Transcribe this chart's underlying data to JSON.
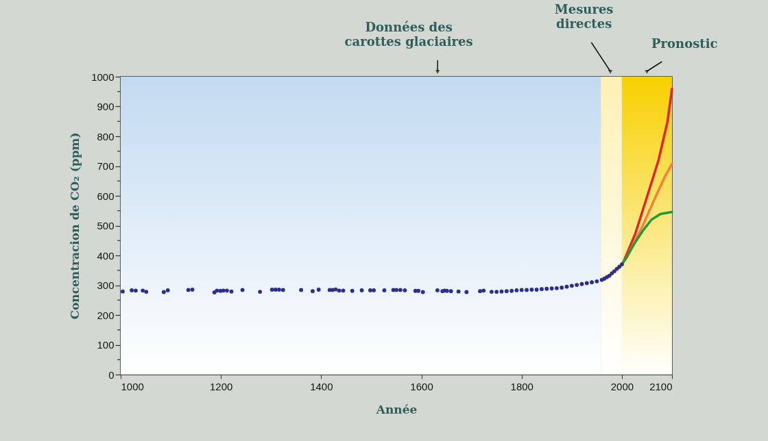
{
  "chart_data": {
    "type": "scatter",
    "xlabel": "Année",
    "ylabel": "Concentracion de CO₂ (ppm)",
    "xlim": [
      1000,
      2100
    ],
    "xticks": [
      1000,
      1200,
      1400,
      1600,
      1800,
      2000,
      2100
    ],
    "ylim": [
      0,
      1000
    ],
    "yticks": [
      0,
      {
        "value": 50,
        "label": null
      },
      100,
      {
        "value": 150,
        "label": null
      },
      200,
      {
        "value": 250,
        "label": null
      },
      300,
      {
        "value": 350,
        "label": null
      },
      400,
      {
        "value": 450,
        "label": null
      },
      500,
      {
        "value": 550,
        "label": null
      },
      600,
      {
        "value": 650,
        "label": null
      },
      700,
      {
        "value": 750,
        "label": null
      },
      800,
      {
        "value": 850,
        "label": null
      },
      900,
      {
        "value": 950,
        "label": null
      },
      1000
    ],
    "bands": [
      {
        "axis": "x",
        "from": 1000,
        "to": 1958,
        "label": "Données des\ncarottes glaciaires",
        "color": "#c2daf1"
      },
      {
        "axis": "x",
        "from": 1958,
        "to": 2000,
        "label": "Mesures\ndirectes",
        "color": "#fdf1b5"
      },
      {
        "axis": "x",
        "from": 2000,
        "to": 2100,
        "label": "Pronostic",
        "color": "#f7d000"
      }
    ],
    "series": [
      {
        "color": "#2e2e8a",
        "marker": "circle",
        "x": [
          1004,
          1022,
          1030,
          1044,
          1051,
          1086,
          1094,
          1135,
          1143,
          1187,
          1192,
          1199,
          1205,
          1212,
          1221,
          1243,
          1278,
          1302,
          1309,
          1316,
          1324,
          1360,
          1383,
          1395,
          1417,
          1423,
          1429,
          1436,
          1444,
          1462,
          1481,
          1498,
          1505,
          1526,
          1544,
          1550,
          1558,
          1567,
          1588,
          1594,
          1603,
          1632,
          1642,
          1646,
          1651,
          1659,
          1674,
          1690,
          1717,
          1724,
          1740,
          1750,
          1760,
          1770,
          1780,
          1790,
          1800,
          1810,
          1820,
          1830,
          1840,
          1850,
          1860,
          1870,
          1880,
          1890,
          1900,
          1910,
          1920,
          1930,
          1940,
          1950,
          1960,
          1965,
          1970,
          1975,
          1980,
          1985,
          1990,
          1995,
          2000
        ],
        "values": [
          279,
          283,
          282,
          282,
          278,
          277,
          283,
          284,
          285,
          276,
          282,
          281,
          282,
          282,
          279,
          284,
          278,
          285,
          285,
          285,
          284,
          284,
          280,
          285,
          284,
          284,
          286,
          282,
          282,
          281,
          283,
          283,
          283,
          283,
          284,
          284,
          284,
          283,
          281,
          281,
          277,
          283,
          280,
          282,
          281,
          280,
          279,
          277,
          280,
          282,
          278,
          278,
          279,
          280,
          281,
          283,
          284,
          284,
          285,
          285,
          287,
          288,
          289,
          290,
          292,
          295,
          298,
          301,
          304,
          307,
          310,
          313,
          318,
          322,
          327,
          332,
          340,
          347,
          355,
          362,
          370
        ]
      },
      {
        "type": "line",
        "color": "#e3232b",
        "line_style": "solid",
        "x": [
          2000,
          2004,
          2027,
          2050,
          2073,
          2091,
          2100
        ],
        "values": [
          370,
          382,
          474,
          596,
          719,
          849,
          960
        ]
      },
      {
        "type": "line",
        "color": "#f0813a",
        "line_style": "solid",
        "x": [
          2000,
          2010,
          2025,
          2041,
          2063,
          2086,
          2100
        ],
        "values": [
          370,
          395,
          445,
          497,
          581,
          665,
          707
        ]
      },
      {
        "type": "line",
        "color": "#1f9a3a",
        "line_style": "solid",
        "x": [
          2000,
          2010,
          2025,
          2041,
          2059,
          2077,
          2100
        ],
        "values": [
          370,
          395,
          440,
          481,
          520,
          539,
          546
        ]
      }
    ]
  }
}
